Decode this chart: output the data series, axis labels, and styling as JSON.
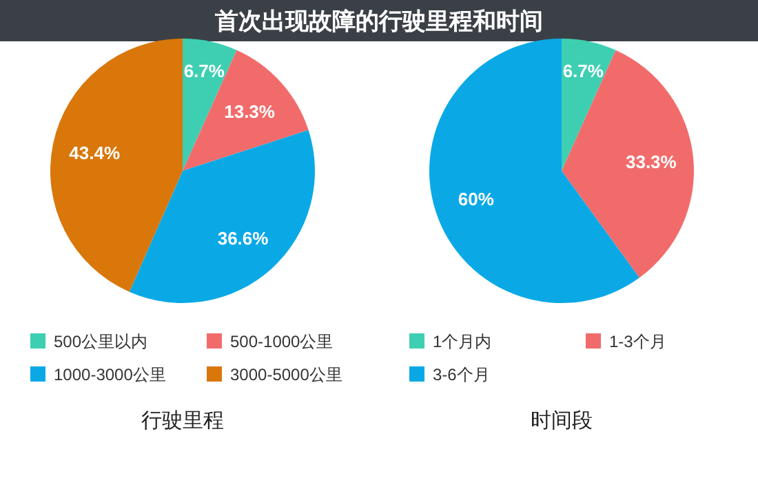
{
  "chart_data": [
    {
      "type": "pie",
      "title": "首次出现故障的行驶里程和时间",
      "xlabel": "行驶里程",
      "categories": [
        "500公里以内",
        "500-1000公里",
        "1000-3000公里",
        "3000-5000公里"
      ],
      "values": [
        6.7,
        13.3,
        36.6,
        43.4
      ],
      "value_labels": [
        "6.7%",
        "13.3%",
        "36.6%",
        "43.4%"
      ],
      "colors": [
        "#3ecfb2",
        "#f26b6b",
        "#0aa9e6",
        "#d9770b"
      ],
      "legend": "bottom"
    },
    {
      "type": "pie",
      "xlabel": "时间段",
      "categories": [
        "1个月内",
        "1-3个月",
        "3-6个月"
      ],
      "values": [
        6.7,
        33.3,
        60
      ],
      "value_labels": [
        "6.7%",
        "33.3%",
        "60%"
      ],
      "colors": [
        "#3ecfb2",
        "#f26b6b",
        "#0aa9e6"
      ],
      "legend": "bottom"
    }
  ]
}
